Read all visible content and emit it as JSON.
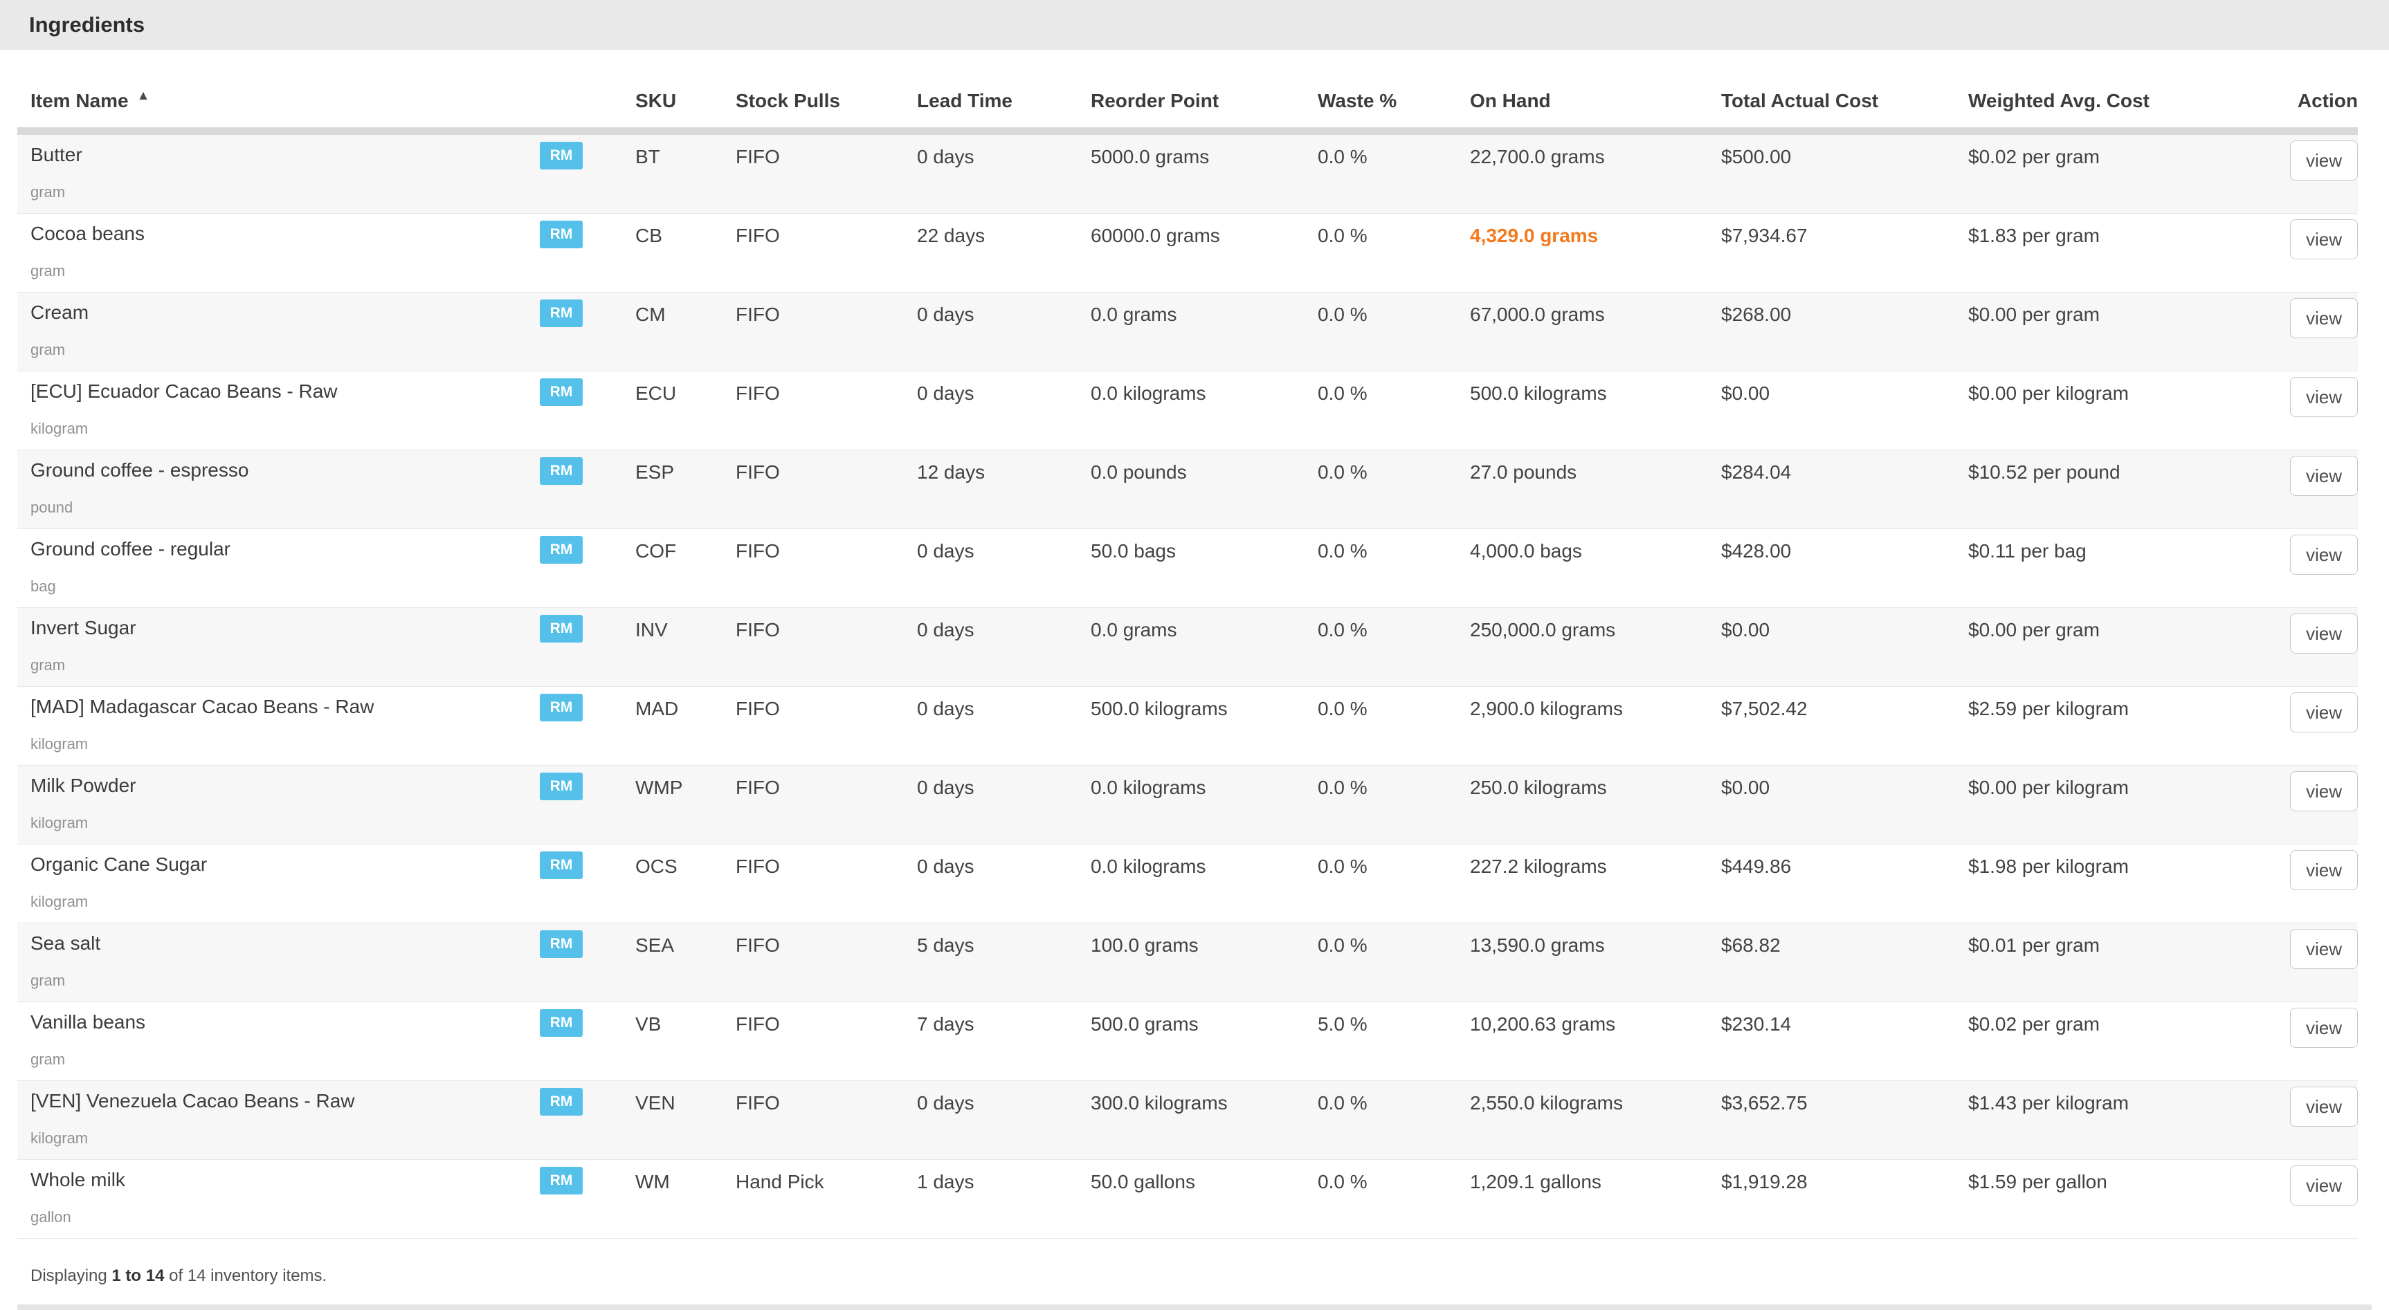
{
  "header": {
    "title": "Ingredients"
  },
  "table": {
    "columns": [
      {
        "label": "Item Name",
        "sorted": "asc"
      },
      {
        "label": "SKU"
      },
      {
        "label": "Stock Pulls"
      },
      {
        "label": "Lead Time"
      },
      {
        "label": "Reorder Point"
      },
      {
        "label": "Waste %"
      },
      {
        "label": "On Hand"
      },
      {
        "label": "Total Actual Cost"
      },
      {
        "label": "Weighted Avg. Cost"
      },
      {
        "label": "Action"
      }
    ],
    "rows": [
      {
        "name": "Butter",
        "unit": "gram",
        "badge": "RM",
        "sku": "BT",
        "stock_pulls": "FIFO",
        "lead_time": "0 days",
        "reorder_point": "5000.0 grams",
        "waste_pct": "0.0 %",
        "on_hand": "22,700.0 grams",
        "on_hand_alert": false,
        "total_actual_cost": "$500.00",
        "weighted_avg_cost": "$0.02 per gram",
        "action": "view"
      },
      {
        "name": "Cocoa beans",
        "unit": "gram",
        "badge": "RM",
        "sku": "CB",
        "stock_pulls": "FIFO",
        "lead_time": "22 days",
        "reorder_point": "60000.0 grams",
        "waste_pct": "0.0 %",
        "on_hand": "4,329.0 grams",
        "on_hand_alert": true,
        "total_actual_cost": "$7,934.67",
        "weighted_avg_cost": "$1.83 per gram",
        "action": "view"
      },
      {
        "name": "Cream",
        "unit": "gram",
        "badge": "RM",
        "sku": "CM",
        "stock_pulls": "FIFO",
        "lead_time": "0 days",
        "reorder_point": "0.0 grams",
        "waste_pct": "0.0 %",
        "on_hand": "67,000.0 grams",
        "on_hand_alert": false,
        "total_actual_cost": "$268.00",
        "weighted_avg_cost": "$0.00 per gram",
        "action": "view"
      },
      {
        "name": "[ECU] Ecuador Cacao Beans - Raw",
        "unit": "kilogram",
        "badge": "RM",
        "sku": "ECU",
        "stock_pulls": "FIFO",
        "lead_time": "0 days",
        "reorder_point": "0.0 kilograms",
        "waste_pct": "0.0 %",
        "on_hand": "500.0 kilograms",
        "on_hand_alert": false,
        "total_actual_cost": "$0.00",
        "weighted_avg_cost": "$0.00 per kilogram",
        "action": "view"
      },
      {
        "name": "Ground coffee - espresso",
        "unit": "pound",
        "badge": "RM",
        "sku": "ESP",
        "stock_pulls": "FIFO",
        "lead_time": "12 days",
        "reorder_point": "0.0 pounds",
        "waste_pct": "0.0 %",
        "on_hand": "27.0 pounds",
        "on_hand_alert": false,
        "total_actual_cost": "$284.04",
        "weighted_avg_cost": "$10.52 per pound",
        "action": "view"
      },
      {
        "name": "Ground coffee - regular",
        "unit": "bag",
        "badge": "RM",
        "sku": "COF",
        "stock_pulls": "FIFO",
        "lead_time": "0 days",
        "reorder_point": "50.0 bags",
        "waste_pct": "0.0 %",
        "on_hand": "4,000.0 bags",
        "on_hand_alert": false,
        "total_actual_cost": "$428.00",
        "weighted_avg_cost": "$0.11 per bag",
        "action": "view"
      },
      {
        "name": "Invert Sugar",
        "unit": "gram",
        "badge": "RM",
        "sku": "INV",
        "stock_pulls": "FIFO",
        "lead_time": "0 days",
        "reorder_point": "0.0 grams",
        "waste_pct": "0.0 %",
        "on_hand": "250,000.0 grams",
        "on_hand_alert": false,
        "total_actual_cost": "$0.00",
        "weighted_avg_cost": "$0.00 per gram",
        "action": "view"
      },
      {
        "name": "[MAD] Madagascar Cacao Beans - Raw",
        "unit": "kilogram",
        "badge": "RM",
        "sku": "MAD",
        "stock_pulls": "FIFO",
        "lead_time": "0 days",
        "reorder_point": "500.0 kilograms",
        "waste_pct": "0.0 %",
        "on_hand": "2,900.0 kilograms",
        "on_hand_alert": false,
        "total_actual_cost": "$7,502.42",
        "weighted_avg_cost": "$2.59 per kilogram",
        "action": "view"
      },
      {
        "name": "Milk Powder",
        "unit": "kilogram",
        "badge": "RM",
        "sku": "WMP",
        "stock_pulls": "FIFO",
        "lead_time": "0 days",
        "reorder_point": "0.0 kilograms",
        "waste_pct": "0.0 %",
        "on_hand": "250.0 kilograms",
        "on_hand_alert": false,
        "total_actual_cost": "$0.00",
        "weighted_avg_cost": "$0.00 per kilogram",
        "action": "view"
      },
      {
        "name": "Organic Cane Sugar",
        "unit": "kilogram",
        "badge": "RM",
        "sku": "OCS",
        "stock_pulls": "FIFO",
        "lead_time": "0 days",
        "reorder_point": "0.0 kilograms",
        "waste_pct": "0.0 %",
        "on_hand": "227.2 kilograms",
        "on_hand_alert": false,
        "total_actual_cost": "$449.86",
        "weighted_avg_cost": "$1.98 per kilogram",
        "action": "view"
      },
      {
        "name": "Sea salt",
        "unit": "gram",
        "badge": "RM",
        "sku": "SEA",
        "stock_pulls": "FIFO",
        "lead_time": "5 days",
        "reorder_point": "100.0 grams",
        "waste_pct": "0.0 %",
        "on_hand": "13,590.0 grams",
        "on_hand_alert": false,
        "total_actual_cost": "$68.82",
        "weighted_avg_cost": "$0.01 per gram",
        "action": "view"
      },
      {
        "name": "Vanilla beans",
        "unit": "gram",
        "badge": "RM",
        "sku": "VB",
        "stock_pulls": "FIFO",
        "lead_time": "7 days",
        "reorder_point": "500.0 grams",
        "waste_pct": "5.0 %",
        "on_hand": "10,200.63 grams",
        "on_hand_alert": false,
        "total_actual_cost": "$230.14",
        "weighted_avg_cost": "$0.02 per gram",
        "action": "view"
      },
      {
        "name": "[VEN] Venezuela Cacao Beans - Raw",
        "unit": "kilogram",
        "badge": "RM",
        "sku": "VEN",
        "stock_pulls": "FIFO",
        "lead_time": "0 days",
        "reorder_point": "300.0 kilograms",
        "waste_pct": "0.0 %",
        "on_hand": "2,550.0 kilograms",
        "on_hand_alert": false,
        "total_actual_cost": "$3,652.75",
        "weighted_avg_cost": "$1.43 per kilogram",
        "action": "view"
      },
      {
        "name": "Whole milk",
        "unit": "gallon",
        "badge": "RM",
        "sku": "WM",
        "stock_pulls": "Hand Pick",
        "lead_time": "1 days",
        "reorder_point": "50.0 gallons",
        "waste_pct": "0.0 %",
        "on_hand": "1,209.1 gallons",
        "on_hand_alert": false,
        "total_actual_cost": "$1,919.28",
        "weighted_avg_cost": "$1.59 per gallon",
        "action": "view"
      }
    ]
  },
  "footer": {
    "prefix": "Displaying ",
    "range": "1 to 14",
    "suffix": " of 14 inventory items."
  },
  "icons": {
    "sort_ascending": "▲"
  },
  "colors": {
    "badge": "#55c0e9",
    "alert": "#f4791d"
  }
}
